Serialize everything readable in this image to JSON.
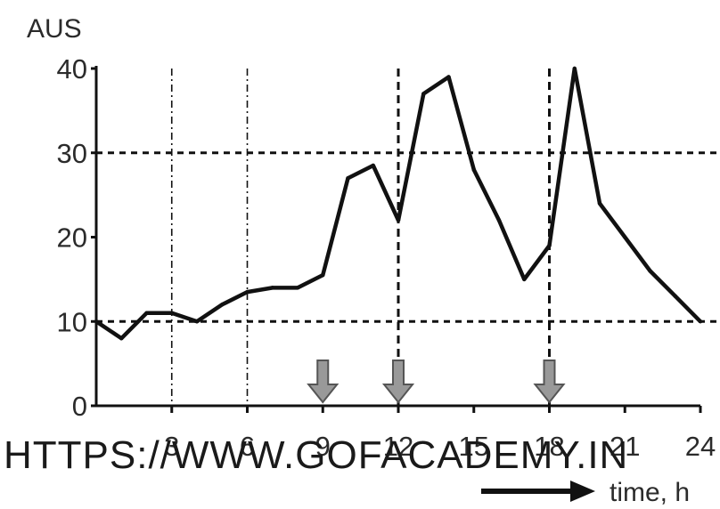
{
  "chart_data": {
    "type": "line",
    "ylabel": "AUS",
    "xlabel": "time, h",
    "xlim": [
      0,
      24
    ],
    "ylim": [
      0,
      40
    ],
    "x_ticks": [
      3,
      6,
      9,
      12,
      15,
      18,
      21,
      24
    ],
    "y_ticks": [
      0,
      10,
      20,
      30,
      40
    ],
    "reference_lines_y": [
      10,
      30
    ],
    "reference_lines_x": [
      3,
      6,
      12,
      18
    ],
    "dose_markers_x": [
      9,
      12,
      18
    ],
    "series": [
      {
        "x": [
          0,
          1,
          2,
          3,
          4,
          5,
          6,
          7,
          8,
          9,
          10,
          11,
          12,
          13,
          14,
          15,
          16,
          17,
          18,
          19,
          20,
          21,
          22,
          23,
          24
        ],
        "y": [
          10,
          8,
          11,
          11,
          10,
          12,
          13.5,
          14,
          14,
          15.5,
          27,
          28.5,
          22,
          37,
          39,
          28,
          22,
          15,
          19,
          40,
          24,
          20,
          16,
          13,
          10
        ]
      }
    ],
    "colors": {
      "line": "#111111",
      "marker": "#999999",
      "grid": "#111111"
    }
  },
  "watermark": "HTTPS://WWW.GOFACADEMY.IN"
}
